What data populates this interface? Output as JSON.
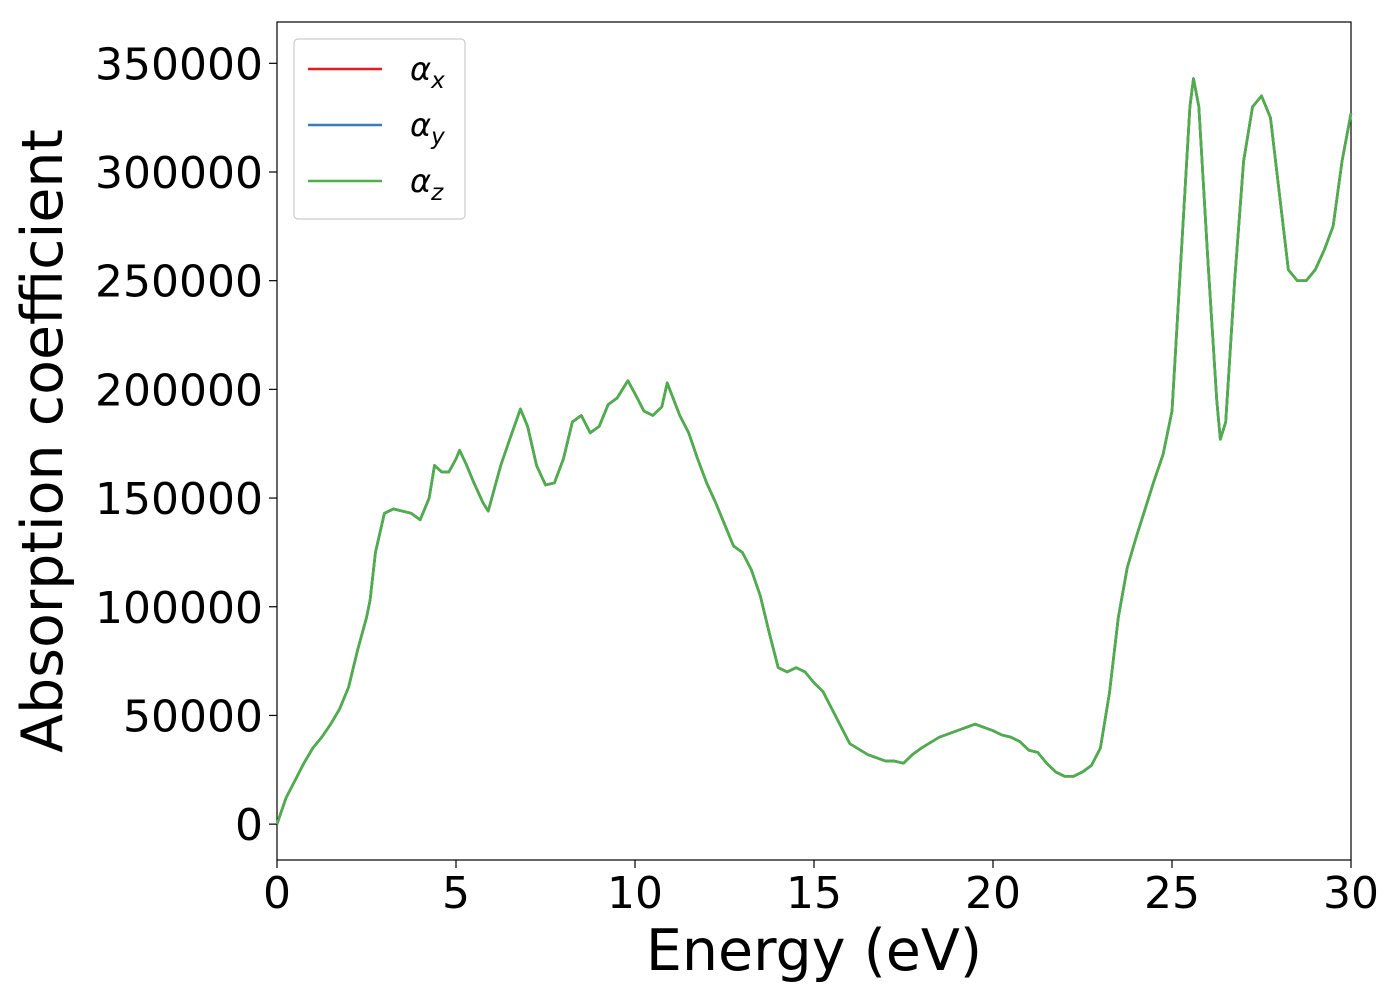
{
  "chart_data": {
    "type": "line",
    "xlabel": "Energy (eV)",
    "ylabel": "Absorption coefficient",
    "xlim": [
      0,
      30
    ],
    "xticks": [
      0,
      5,
      10,
      15,
      20,
      25,
      30
    ],
    "ylim": [
      -16500,
      369000
    ],
    "yticks": [
      0,
      50000,
      100000,
      150000,
      200000,
      250000,
      300000,
      350000
    ],
    "legend": "upper left",
    "x": [
      0,
      0.25,
      0.5,
      0.75,
      1,
      1.25,
      1.5,
      1.75,
      2,
      2.25,
      2.5,
      2.6,
      2.75,
      3,
      3.25,
      3.5,
      3.75,
      4,
      4.25,
      4.4,
      4.6,
      4.8,
      5,
      5.1,
      5.3,
      5.5,
      5.75,
      5.9,
      6.25,
      6.5,
      6.8,
      7,
      7.25,
      7.5,
      7.75,
      8,
      8.25,
      8.5,
      8.75,
      9,
      9.25,
      9.5,
      9.8,
      10,
      10.25,
      10.5,
      10.75,
      10.9,
      11.25,
      11.5,
      11.75,
      12,
      12.25,
      12.5,
      12.75,
      13,
      13.25,
      13.5,
      13.75,
      14,
      14.25,
      14.5,
      14.75,
      15,
      15.25,
      15.5,
      15.75,
      16,
      16.5,
      17,
      17.25,
      17.5,
      17.75,
      18,
      18.5,
      19,
      19.5,
      20,
      20.25,
      20.5,
      20.75,
      21,
      21.25,
      21.5,
      21.75,
      22,
      22.25,
      22.5,
      22.75,
      23,
      23.25,
      23.5,
      23.75,
      24,
      24.25,
      24.5,
      24.75,
      25,
      25.25,
      25.5,
      25.6,
      25.75,
      26,
      26.25,
      26.35,
      26.5,
      26.75,
      27,
      27.25,
      27.5,
      27.75,
      28,
      28.25,
      28.5,
      28.75,
      29,
      29.25,
      29.5,
      29.75,
      30
    ],
    "series": [
      {
        "name": "αx",
        "color": "#e41a1c",
        "values": [
          0,
          12000,
          20000,
          28000,
          35000,
          40000,
          46000,
          53000,
          63000,
          80000,
          95000,
          103000,
          125000,
          143000,
          145000,
          144000,
          143000,
          140000,
          150000,
          165000,
          162000,
          162000,
          168000,
          172000,
          165000,
          157000,
          148000,
          144000,
          165000,
          177000,
          191000,
          183000,
          165000,
          156000,
          157000,
          168000,
          185000,
          188000,
          180000,
          183000,
          193000,
          196000,
          204000,
          198000,
          190000,
          188000,
          192000,
          203000,
          188000,
          180000,
          168000,
          157000,
          148000,
          138000,
          128000,
          125000,
          117000,
          105000,
          88000,
          72000,
          70000,
          72000,
          70000,
          65000,
          61000,
          53000,
          45000,
          37000,
          32000,
          29000,
          29000,
          28000,
          32000,
          35000,
          40000,
          43000,
          46000,
          43000,
          41000,
          40000,
          38000,
          34000,
          33000,
          28000,
          24000,
          22000,
          22000,
          24000,
          27000,
          35000,
          60000,
          95000,
          118000,
          132000,
          145000,
          158000,
          170000,
          190000,
          260000,
          330000,
          343000,
          330000,
          260000,
          195000,
          177000,
          185000,
          250000,
          305000,
          330000,
          335000,
          325000,
          290000,
          255000,
          250000,
          250000,
          255000,
          264000,
          275000,
          305000,
          327000
        ]
      },
      {
        "name": "αy",
        "color": "#377eb8",
        "values": [
          0,
          12000,
          20000,
          28000,
          35000,
          40000,
          46000,
          53000,
          63000,
          80000,
          95000,
          103000,
          125000,
          143000,
          145000,
          144000,
          143000,
          140000,
          150000,
          165000,
          162000,
          162000,
          168000,
          172000,
          165000,
          157000,
          148000,
          144000,
          165000,
          177000,
          191000,
          183000,
          165000,
          156000,
          157000,
          168000,
          185000,
          188000,
          180000,
          183000,
          193000,
          196000,
          204000,
          198000,
          190000,
          188000,
          192000,
          203000,
          188000,
          180000,
          168000,
          157000,
          148000,
          138000,
          128000,
          125000,
          117000,
          105000,
          88000,
          72000,
          70000,
          72000,
          70000,
          65000,
          61000,
          53000,
          45000,
          37000,
          32000,
          29000,
          29000,
          28000,
          32000,
          35000,
          40000,
          43000,
          46000,
          43000,
          41000,
          40000,
          38000,
          34000,
          33000,
          28000,
          24000,
          22000,
          22000,
          24000,
          27000,
          35000,
          60000,
          95000,
          118000,
          132000,
          145000,
          158000,
          170000,
          190000,
          260000,
          330000,
          343000,
          330000,
          260000,
          195000,
          177000,
          185000,
          250000,
          305000,
          330000,
          335000,
          325000,
          290000,
          255000,
          250000,
          250000,
          255000,
          264000,
          275000,
          305000,
          327000
        ]
      },
      {
        "name": "αz",
        "color": "#4daf4a",
        "values": [
          0,
          12000,
          20000,
          28000,
          35000,
          40000,
          46000,
          53000,
          63000,
          80000,
          95000,
          103000,
          125000,
          143000,
          145000,
          144000,
          143000,
          140000,
          150000,
          165000,
          162000,
          162000,
          168000,
          172000,
          165000,
          157000,
          148000,
          144000,
          165000,
          177000,
          191000,
          183000,
          165000,
          156000,
          157000,
          168000,
          185000,
          188000,
          180000,
          183000,
          193000,
          196000,
          204000,
          198000,
          190000,
          188000,
          192000,
          203000,
          188000,
          180000,
          168000,
          157000,
          148000,
          138000,
          128000,
          125000,
          117000,
          105000,
          88000,
          72000,
          70000,
          72000,
          70000,
          65000,
          61000,
          53000,
          45000,
          37000,
          32000,
          29000,
          29000,
          28000,
          32000,
          35000,
          40000,
          43000,
          46000,
          43000,
          41000,
          40000,
          38000,
          34000,
          33000,
          28000,
          24000,
          22000,
          22000,
          24000,
          27000,
          35000,
          60000,
          95000,
          118000,
          132000,
          145000,
          158000,
          170000,
          190000,
          260000,
          330000,
          343000,
          330000,
          260000,
          195000,
          177000,
          185000,
          250000,
          305000,
          330000,
          335000,
          325000,
          290000,
          255000,
          250000,
          250000,
          255000,
          264000,
          275000,
          305000,
          327000
        ]
      }
    ]
  }
}
